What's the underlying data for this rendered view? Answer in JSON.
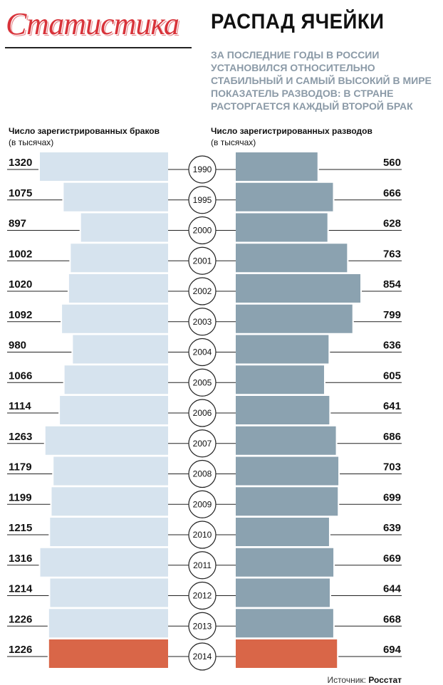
{
  "brand": "Статистика",
  "header": {
    "title": "РАСПАД ЯЧЕЙКИ",
    "subtitle": "ЗА ПОСЛЕДНИЕ ГОДЫ В РОССИИ УСТАНОВИЛСЯ ОТНОСИТЕЛЬНО СТАБИЛЬНЫЙ И САМЫЙ ВЫСОКИЙ В МИРЕ ПОКАЗАТЕЛЬ РАЗВОДОВ: В СТРАНЕ РАСТОРГАЕТСЯ КАЖДЫЙ ВТОРОЙ БРАК"
  },
  "left_label": {
    "title": "Число зарегистрированных браков",
    "unit": "(в тысячах)"
  },
  "right_label": {
    "title": "Число зарегистрированных разводов",
    "unit": "(в тысячах)"
  },
  "source": {
    "prefix": "Источник:",
    "name": "Росстат"
  },
  "colors": {
    "marriage": "#d6e3ee",
    "divorce": "#8ba2b0",
    "highlight": "#d96648"
  },
  "chart_data": {
    "type": "bar",
    "categories": [
      "1990",
      "1995",
      "2000",
      "2001",
      "2002",
      "2003",
      "2004",
      "2005",
      "2006",
      "2007",
      "2008",
      "2009",
      "2010",
      "2011",
      "2012",
      "2013",
      "2014"
    ],
    "series": [
      {
        "name": "Число зарегистрированных браков",
        "values": [
          1320,
          1075,
          897,
          1002,
          1020,
          1092,
          980,
          1066,
          1114,
          1263,
          1179,
          1199,
          1215,
          1316,
          1214,
          1226,
          1226
        ]
      },
      {
        "name": "Число зарегистрированных разводов",
        "values": [
          560,
          666,
          628,
          763,
          854,
          799,
          636,
          605,
          641,
          686,
          703,
          699,
          639,
          669,
          644,
          668,
          694
        ]
      }
    ],
    "highlight": "2014"
  }
}
